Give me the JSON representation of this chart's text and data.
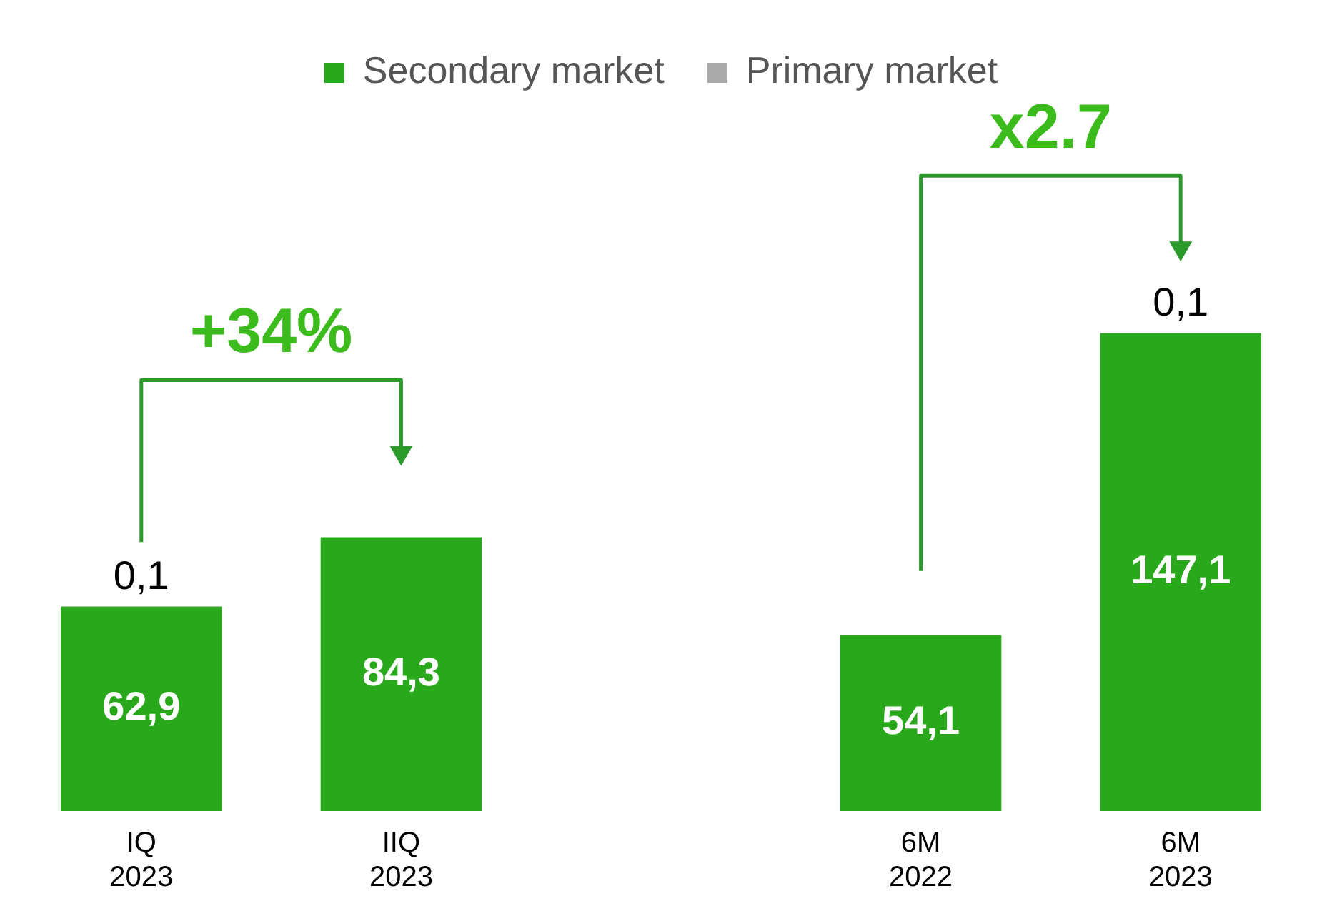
{
  "chart_data": {
    "type": "bar",
    "stacked": true,
    "legend": "top",
    "categories": [
      "IQ 2023",
      "IIQ 2023",
      null,
      "6M 2022",
      "6M 2023"
    ],
    "series": [
      {
        "name": "Secondary market",
        "color": "#28a81a",
        "values": [
          62.9,
          84.3,
          null,
          54.1,
          147.1
        ],
        "value_labels": [
          "62,9",
          "84,3",
          null,
          "54,1",
          "147,1"
        ]
      },
      {
        "name": "Primary market",
        "color": "#aaaaaa",
        "values": [
          0.1,
          null,
          null,
          null,
          0.1
        ],
        "value_labels": [
          "0,1",
          null,
          null,
          null,
          "0,1"
        ]
      }
    ],
    "annotations": [
      "+34%",
      "x2.7"
    ]
  }
}
